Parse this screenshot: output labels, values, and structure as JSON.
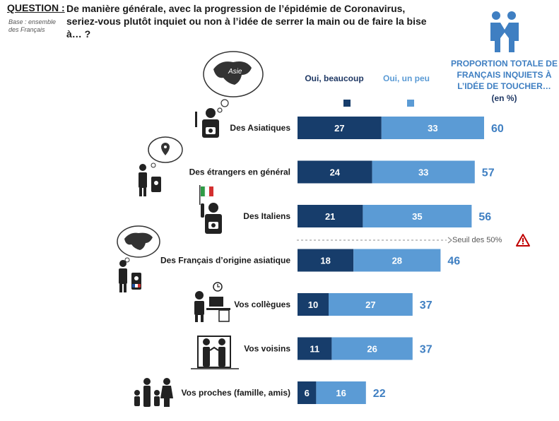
{
  "header": {
    "question_label": "QUESTION :",
    "question_text": "De manière générale, avec la progression de l’épidémie de Coronavirus, seriez-vous plutôt inquiet ou non à l’idée de serrer la main ou de faire la bise à… ?",
    "base_note": "Base : ensemble des Français"
  },
  "total_header": {
    "title": "PROPORTION TOTALE DE FRANÇAIS INQUIETS À L’IDÉE DE TOUCHER…",
    "unit": "(en %)"
  },
  "legend": {
    "a": "Oui, beaucoup",
    "b": "Oui, un peu"
  },
  "threshold": {
    "label": "Seuil des 50%",
    "value": 50
  },
  "icons": {
    "asia_bubble_text": "Asie",
    "header_icon": "handshake-icon"
  },
  "colors": {
    "dark": "#173d6b",
    "light": "#5b9bd5",
    "total": "#3f7fc2"
  },
  "chart_data": {
    "type": "bar",
    "orientation": "horizontal",
    "stacked": true,
    "categories": [
      "Des Asiatiques",
      "Des étrangers en général",
      "Des Italiens",
      "Des Français d’origine asiatique",
      "Vos collègues",
      "Vos voisins",
      "Vos proches (famille, amis)"
    ],
    "series": [
      {
        "name": "Oui, beaucoup",
        "values": [
          27,
          24,
          21,
          18,
          10,
          11,
          6
        ]
      },
      {
        "name": "Oui, un peu",
        "values": [
          33,
          33,
          35,
          28,
          27,
          26,
          16
        ]
      }
    ],
    "totals": [
      60,
      57,
      56,
      46,
      37,
      37,
      22
    ],
    "xlim": [
      0,
      60
    ]
  }
}
